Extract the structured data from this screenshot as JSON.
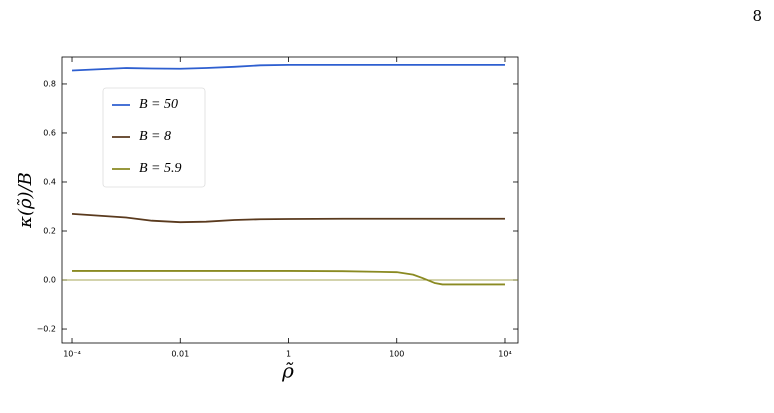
{
  "page_number": "8",
  "chart_data": {
    "type": "line",
    "xlabel": "ρ̃",
    "ylabel": "κ(ρ̃)/B",
    "xscale": "log",
    "x": [
      0.0001,
      0.001,
      0.003,
      0.01,
      0.03,
      0.1,
      0.3,
      1,
      10,
      100,
      200,
      300,
      500,
      700,
      1000,
      10000
    ],
    "series": [
      {
        "name": "B = 50",
        "color": "#2e5fd0",
        "values": [
          0.855,
          0.865,
          0.863,
          0.862,
          0.865,
          0.87,
          0.876,
          0.878,
          0.878,
          0.878,
          0.878,
          0.878,
          0.878,
          0.878,
          0.878,
          0.878
        ]
      },
      {
        "name": "B = 8",
        "color": "#5a3a1e",
        "values": [
          0.27,
          0.255,
          0.242,
          0.236,
          0.238,
          0.245,
          0.248,
          0.249,
          0.25,
          0.25,
          0.25,
          0.25,
          0.25,
          0.25,
          0.25,
          0.25
        ]
      },
      {
        "name": "B = 5.9",
        "color": "#8a8a22",
        "values": [
          0.037,
          0.037,
          0.037,
          0.037,
          0.037,
          0.037,
          0.037,
          0.037,
          0.036,
          0.032,
          0.022,
          0.008,
          -0.012,
          -0.018,
          -0.018,
          -0.018
        ]
      }
    ],
    "reference_line": 0,
    "reference_color": "#8a8a22",
    "xlim": [
      6.53e-05,
      17400
    ],
    "xticks": [
      {
        "value": 0.0001,
        "label": "10⁻⁴"
      },
      0.01,
      1,
      100,
      {
        "value": 10000,
        "label": "10⁴"
      }
    ],
    "ylim": [
      -0.257,
      0.91
    ],
    "yticks": [
      {
        "value": -0.2,
        "label": "−0.2"
      },
      {
        "value": 0,
        "label": "0.0"
      },
      0.2,
      0.4,
      0.6,
      0.8
    ],
    "legend": "upper left"
  }
}
